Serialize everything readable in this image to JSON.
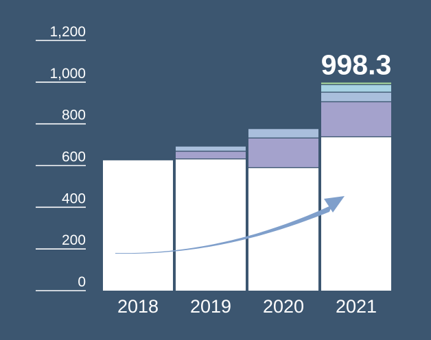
{
  "colors": {
    "background": "#3c5670",
    "base": "#ffffff",
    "purple": "#a4a2cc",
    "light_blue": "#a9bfdc",
    "cyan": "#a8d3e4",
    "green": "#a3d19a",
    "arrow": "#7f9fcb",
    "text": "#ffffff"
  },
  "chart_data": {
    "type": "bar",
    "stacked": true,
    "categories": [
      "2018",
      "2019",
      "2020",
      "2021"
    ],
    "ylim": [
      0,
      1200
    ],
    "yticks": [
      "0",
      "200",
      "400",
      "600",
      "800",
      "1,000",
      "1,200"
    ],
    "series": [
      {
        "color": "#ffffff",
        "values": [
          625,
          632,
          590,
          738
        ]
      },
      {
        "color": "#a4a2cc",
        "values": [
          0,
          37,
          142,
          168
        ]
      },
      {
        "color": "#a9bfdc",
        "values": [
          0,
          22,
          43,
          46
        ]
      },
      {
        "color": "#a8d3e4",
        "values": [
          0,
          0,
          0,
          36
        ]
      },
      {
        "color": "#a3d19a",
        "values": [
          0,
          0,
          0,
          10
        ]
      }
    ],
    "annotations": [
      {
        "category": "2021",
        "text": "998.3"
      }
    ],
    "title": "",
    "xlabel": "",
    "ylabel": "",
    "grid": false,
    "legend": "none",
    "trend_arrow": true
  }
}
